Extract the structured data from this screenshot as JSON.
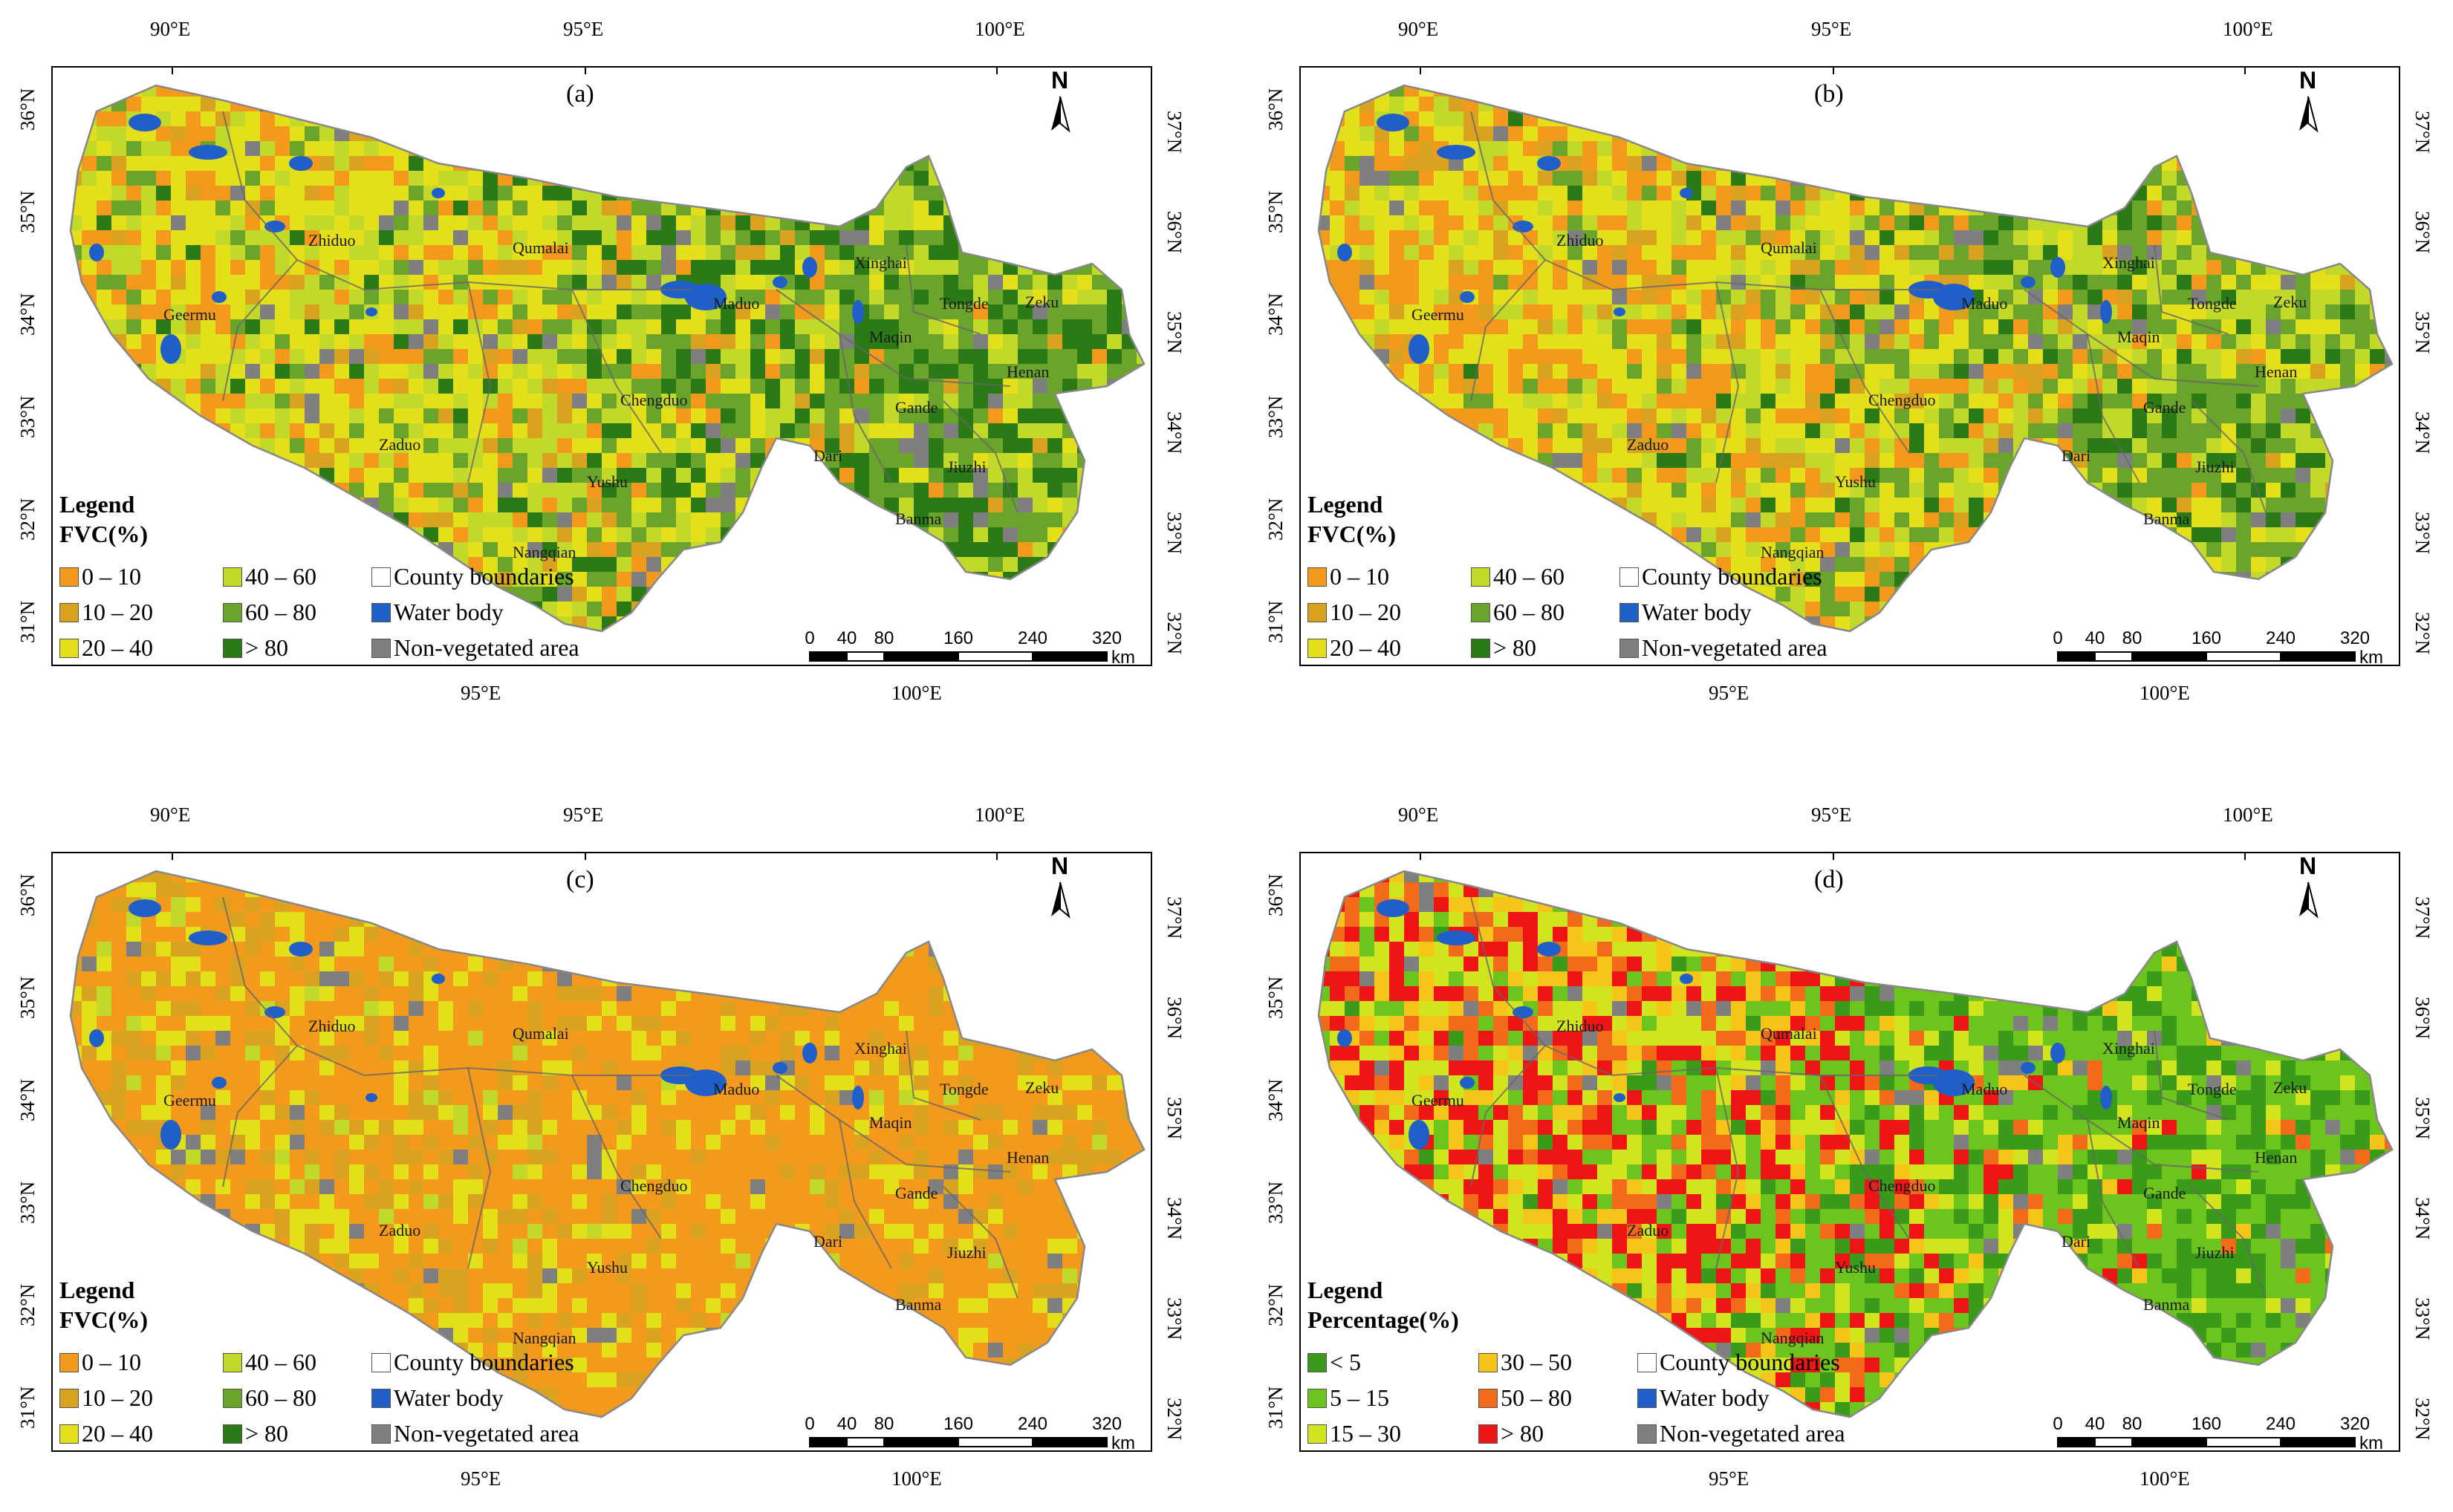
{
  "axes": {
    "lon_top": [
      "90°E",
      "95°E",
      "100°E"
    ],
    "lon_bottom": [
      "95°E",
      "100°E"
    ],
    "lat_left": [
      "36°N",
      "35°N",
      "34°N",
      "33°N",
      "32°N",
      "31°N"
    ],
    "lat_right": [
      "37°N",
      "36°N",
      "35°N",
      "34°N",
      "33°N",
      "32°N"
    ]
  },
  "counties": [
    "Zhiduo",
    "Qumalai",
    "Geermu",
    "Maduo",
    "Xinghai",
    "Tongde",
    "Zeku",
    "Maqin",
    "Henan",
    "Chengduo",
    "Gande",
    "Zaduo",
    "Dari",
    "Jiuzhi",
    "Yushu",
    "Banma",
    "Nangqian"
  ],
  "north": "N",
  "scalebar": {
    "ticks": [
      "0",
      "40",
      "80",
      "160",
      "240",
      "320"
    ],
    "unit": "km"
  },
  "colors": {
    "fvc": [
      "#f39a1c",
      "#d9a31f",
      "#e3e019",
      "#c3d92a",
      "#6aa42a",
      "#2c7a16"
    ],
    "pct": [
      "#3a9a1a",
      "#6cc41c",
      "#d2e41e",
      "#f7c51a",
      "#f26a1a",
      "#ee1515"
    ],
    "water": "#1f5fc7",
    "nonveg": "#7f7f7f",
    "county_box": "#ffffff"
  },
  "panels": [
    {
      "label": "(a)",
      "legend_title": "Legend",
      "legend_subtitle": "FVC(%)",
      "classes": [
        "0 – 10",
        "10 – 20",
        "20 – 40",
        "40 – 60",
        "60 – 80",
        "> 80"
      ],
      "other": [
        "County boundaries",
        "Water body",
        "Non-vegetated area"
      ],
      "west_share": [
        0.22,
        0.08,
        0.4,
        0.2,
        0.07,
        0.03
      ],
      "east_share": [
        0.02,
        0.02,
        0.08,
        0.18,
        0.4,
        0.3
      ]
    },
    {
      "label": "(b)",
      "legend_title": "Legend",
      "legend_subtitle": "FVC(%)",
      "classes": [
        "0 – 10",
        "10 – 20",
        "20 – 40",
        "40 – 60",
        "60 – 80",
        "> 80"
      ],
      "other": [
        "County boundaries",
        "Water body",
        "Non-vegetated area"
      ],
      "west_share": [
        0.3,
        0.12,
        0.38,
        0.14,
        0.05,
        0.01
      ],
      "east_share": [
        0.03,
        0.03,
        0.14,
        0.28,
        0.38,
        0.14
      ]
    },
    {
      "label": "(c)",
      "legend_title": "Legend",
      "legend_subtitle": "FVC(%)",
      "classes": [
        "0 – 10",
        "10 – 20",
        "20 – 40",
        "40 – 60",
        "60 – 80",
        "> 80"
      ],
      "other": [
        "County boundaries",
        "Water body",
        "Non-vegetated area"
      ],
      "west_share": [
        0.55,
        0.2,
        0.22,
        0.03,
        0.0,
        0.0
      ],
      "east_share": [
        0.7,
        0.15,
        0.13,
        0.02,
        0.0,
        0.0
      ]
    },
    {
      "label": "(d)",
      "legend_title": "Legend",
      "legend_subtitle": "Percentage(%)",
      "classes": [
        "< 5",
        "5 – 15",
        "15 – 30",
        "30 – 50",
        "50 – 80",
        "> 80"
      ],
      "other": [
        "County boundaries",
        "Water body",
        "Non-vegetated area"
      ],
      "west_share": [
        0.02,
        0.1,
        0.25,
        0.18,
        0.15,
        0.3
      ],
      "east_share": [
        0.3,
        0.55,
        0.1,
        0.03,
        0.01,
        0.01
      ]
    }
  ]
}
